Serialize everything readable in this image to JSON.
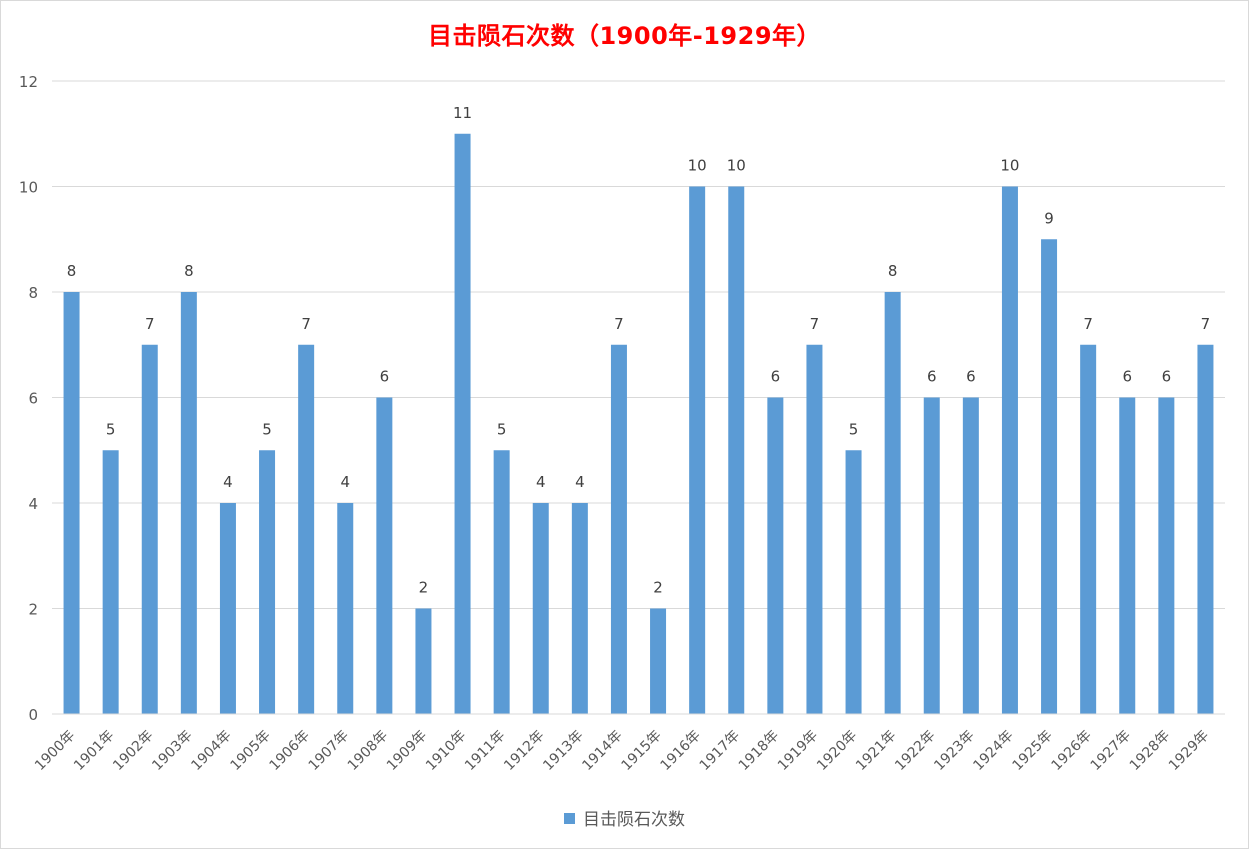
{
  "chart_data": {
    "type": "bar",
    "title": "目击陨石次数（1900年-1929年）",
    "categories": [
      "1900年",
      "1901年",
      "1902年",
      "1903年",
      "1904年",
      "1905年",
      "1906年",
      "1907年",
      "1908年",
      "1909年",
      "1910年",
      "1911年",
      "1912年",
      "1913年",
      "1914年",
      "1915年",
      "1916年",
      "1917年",
      "1918年",
      "1919年",
      "1920年",
      "1921年",
      "1922年",
      "1923年",
      "1924年",
      "1925年",
      "1926年",
      "1927年",
      "1928年",
      "1929年"
    ],
    "series": [
      {
        "name": "目击陨石次数",
        "color": "#5b9bd5",
        "values": [
          8,
          5,
          7,
          8,
          4,
          5,
          7,
          4,
          6,
          2,
          11,
          5,
          4,
          4,
          7,
          2,
          10,
          10,
          6,
          7,
          5,
          8,
          6,
          6,
          10,
          9,
          7,
          6,
          6,
          7
        ]
      }
    ],
    "xlabel": "",
    "ylabel": "",
    "ylim": [
      0,
      12
    ],
    "yticks": [
      "0",
      "2",
      "4",
      "6",
      "8",
      "10",
      "12"
    ],
    "grid": true,
    "data_labels": true,
    "legend_position": "bottom",
    "title_color": "#ff0000"
  }
}
